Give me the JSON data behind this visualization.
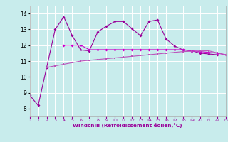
{
  "x": [
    0,
    1,
    2,
    3,
    4,
    5,
    6,
    7,
    8,
    9,
    10,
    11,
    12,
    13,
    14,
    15,
    16,
    17,
    18,
    19,
    20,
    21,
    22,
    23
  ],
  "line1": [
    8.85,
    8.2,
    10.6,
    13.0,
    13.8,
    12.6,
    11.7,
    11.65,
    12.85,
    13.2,
    13.5,
    13.5,
    13.05,
    12.6,
    13.5,
    13.6,
    12.4,
    11.95,
    11.7,
    11.65,
    11.5,
    11.45,
    11.4,
    null
  ],
  "line2": [
    null,
    null,
    null,
    null,
    12.0,
    12.0,
    12.0,
    11.72,
    11.72,
    11.72,
    11.72,
    11.72,
    11.72,
    11.72,
    11.72,
    11.72,
    11.72,
    11.72,
    11.72,
    11.65,
    11.6,
    11.55,
    11.5,
    11.4
  ],
  "line3": [
    null,
    null,
    10.6,
    10.7,
    10.8,
    10.9,
    11.0,
    11.05,
    11.1,
    11.15,
    11.2,
    11.25,
    11.3,
    11.35,
    11.4,
    11.45,
    11.5,
    11.55,
    11.6,
    11.62,
    11.64,
    11.65,
    11.52,
    11.4
  ],
  "bg_color": "#c8ecec",
  "grid_color": "#ffffff",
  "line1_color": "#990099",
  "line2_color": "#cc00cc",
  "line3_color": "#bb55bb",
  "xlabel": "Windchill (Refroidissement éolien,°C)",
  "ylim": [
    7.5,
    14.5
  ],
  "xlim": [
    0,
    23
  ],
  "yticks": [
    8,
    9,
    10,
    11,
    12,
    13,
    14
  ],
  "xticks": [
    0,
    1,
    2,
    3,
    4,
    5,
    6,
    7,
    8,
    9,
    10,
    11,
    12,
    13,
    14,
    15,
    16,
    17,
    18,
    19,
    20,
    21,
    22,
    23
  ]
}
